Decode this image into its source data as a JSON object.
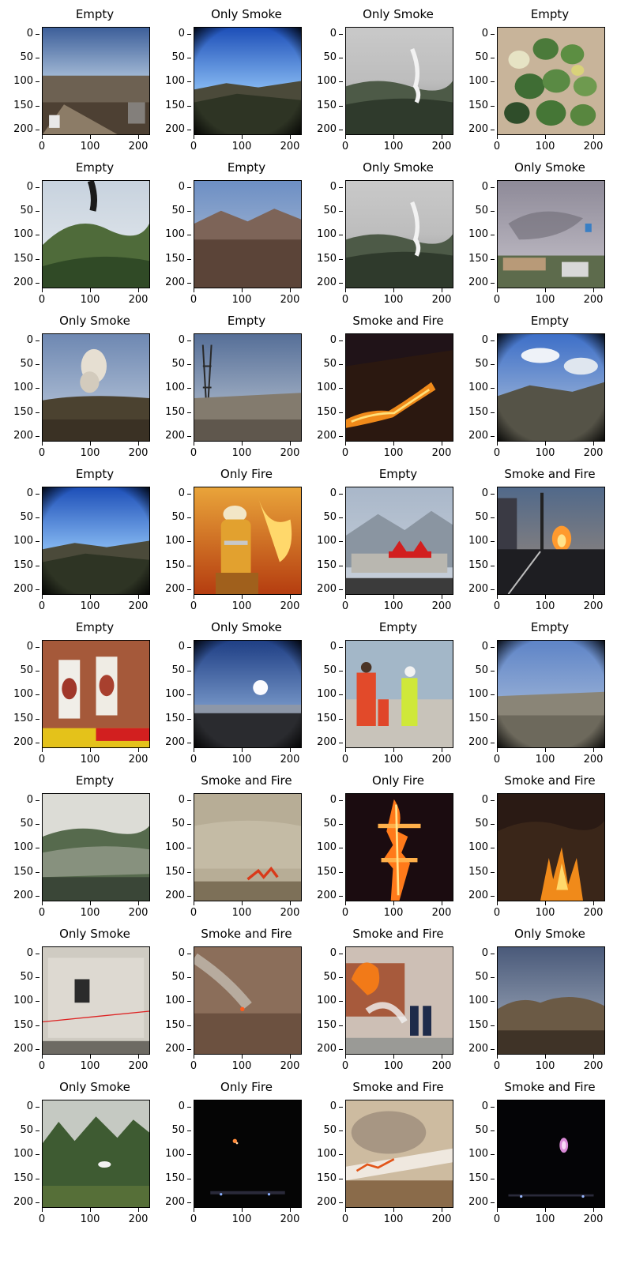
{
  "axes": {
    "y_ticks": [
      "0",
      "50",
      "100",
      "150",
      "200"
    ],
    "x_ticks": [
      "0",
      "100",
      "200"
    ]
  },
  "panels": [
    {
      "title": "Empty",
      "scene": "fisheye-city-sky"
    },
    {
      "title": "Only Smoke",
      "scene": "fisheye-blue-sky-hills"
    },
    {
      "title": "Only Smoke",
      "scene": "gray-forest-smoke-plume"
    },
    {
      "title": "Empty",
      "scene": "watermelons-on-sand"
    },
    {
      "title": "Empty",
      "scene": "green-mountain-dark-smoke"
    },
    {
      "title": "Empty",
      "scene": "brown-desert-valley"
    },
    {
      "title": "Only Smoke",
      "scene": "gray-forest-smoke-plume"
    },
    {
      "title": "Only Smoke",
      "scene": "gray-sky-roadside"
    },
    {
      "title": "Only Smoke",
      "scene": "smoke-plume-over-ridge"
    },
    {
      "title": "Empty",
      "scene": "power-tower-valley"
    },
    {
      "title": "Smoke and Fire",
      "scene": "night-hillside-fire"
    },
    {
      "title": "Empty",
      "scene": "fisheye-clouds-mountains"
    },
    {
      "title": "Empty",
      "scene": "fisheye-blue-sky-hills"
    },
    {
      "title": "Only Fire",
      "scene": "firefighter-flames"
    },
    {
      "title": "Empty",
      "scene": "red-roof-building-mountains"
    },
    {
      "title": "Smoke and Fire",
      "scene": "street-fire-at-dusk"
    },
    {
      "title": "Empty",
      "scene": "brick-wall-posters"
    },
    {
      "title": "Only Smoke",
      "scene": "fisheye-sun-haze"
    },
    {
      "title": "Empty",
      "scene": "people-by-waterfront"
    },
    {
      "title": "Empty",
      "scene": "fisheye-rocky-plain"
    },
    {
      "title": "Empty",
      "scene": "misty-hillside"
    },
    {
      "title": "Smoke and Fire",
      "scene": "hazy-field-fire"
    },
    {
      "title": "Only Fire",
      "scene": "burning-tower-night"
    },
    {
      "title": "Smoke and Fire",
      "scene": "forest-fire-night"
    },
    {
      "title": "Only Smoke",
      "scene": "indoor-room-smoke"
    },
    {
      "title": "Smoke and Fire",
      "scene": "brown-field-small-fire"
    },
    {
      "title": "Smoke and Fire",
      "scene": "building-fire-firefighters"
    },
    {
      "title": "Only Smoke",
      "scene": "fisheye-mountain-ridge"
    },
    {
      "title": "Only Smoke",
      "scene": "green-peaks-smoke"
    },
    {
      "title": "Only Fire",
      "scene": "night-distant-fire"
    },
    {
      "title": "Smoke and Fire",
      "scene": "grassland-fire-smoke"
    },
    {
      "title": "Smoke and Fire",
      "scene": "night-purple-glow"
    }
  ]
}
